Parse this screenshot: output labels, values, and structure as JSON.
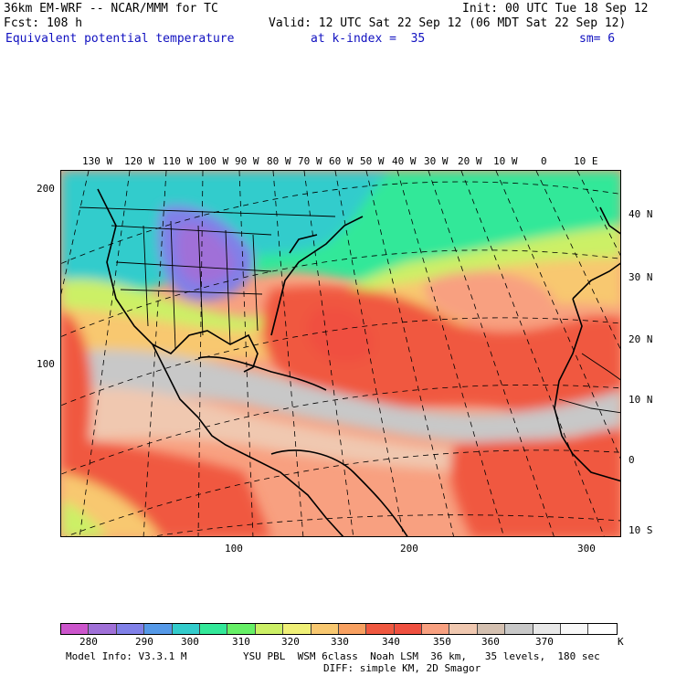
{
  "header": {
    "line1_left": "36km EM-WRF -- NCAR/MMM for TC",
    "line1_right": "Init: 00 UTC Tue 18 Sep 12",
    "line2_left": "Fcst: 108 h",
    "line2_right": "Valid: 12 UTC Sat 22 Sep 12 (06 MDT Sat 22 Sep 12)",
    "field": "Equivalent potential temperature",
    "level": "at k-index =  35",
    "smooth": "sm= 6"
  },
  "lon_labels": [
    "130 W",
    "120 W",
    "110 W",
    "100 W",
    "90 W",
    "80 W",
    "70 W",
    "60 W",
    "50 W",
    "40 W",
    "30 W",
    "20 W",
    "10 W",
    "0",
    "10 E"
  ],
  "lat_labels": [
    "40 N",
    "30 N",
    "20 N",
    "10 N",
    "0",
    "10 S"
  ],
  "grid_x_labels": [
    "100",
    "200",
    "300"
  ],
  "grid_y_labels": [
    "200",
    "100"
  ],
  "colorbar": {
    "colors": [
      "#cc55cc",
      "#a070d8",
      "#8080e8",
      "#5599e8",
      "#33cccc",
      "#33e899",
      "#66f066",
      "#ccf066",
      "#f0f077",
      "#f8c870",
      "#f8a060",
      "#f05840",
      "#f05040",
      "#f8a080",
      "#f0c8b0",
      "#d4c0b0",
      "#c8c8c8",
      "#e8e8e8",
      "#f8f8f8",
      "#ffffff"
    ],
    "labels": [
      "280",
      "290",
      "300",
      "310",
      "320",
      "330",
      "340",
      "350",
      "360",
      "370"
    ],
    "unit": "K"
  },
  "footer": {
    "model": "Model Info: V3.3.1 M",
    "physics": "YSU PBL  WSM 6class  Noah LSM  36 km,   35 levels,  180 sec",
    "diff": "DIFF: simple KM, 2D Smagor"
  }
}
